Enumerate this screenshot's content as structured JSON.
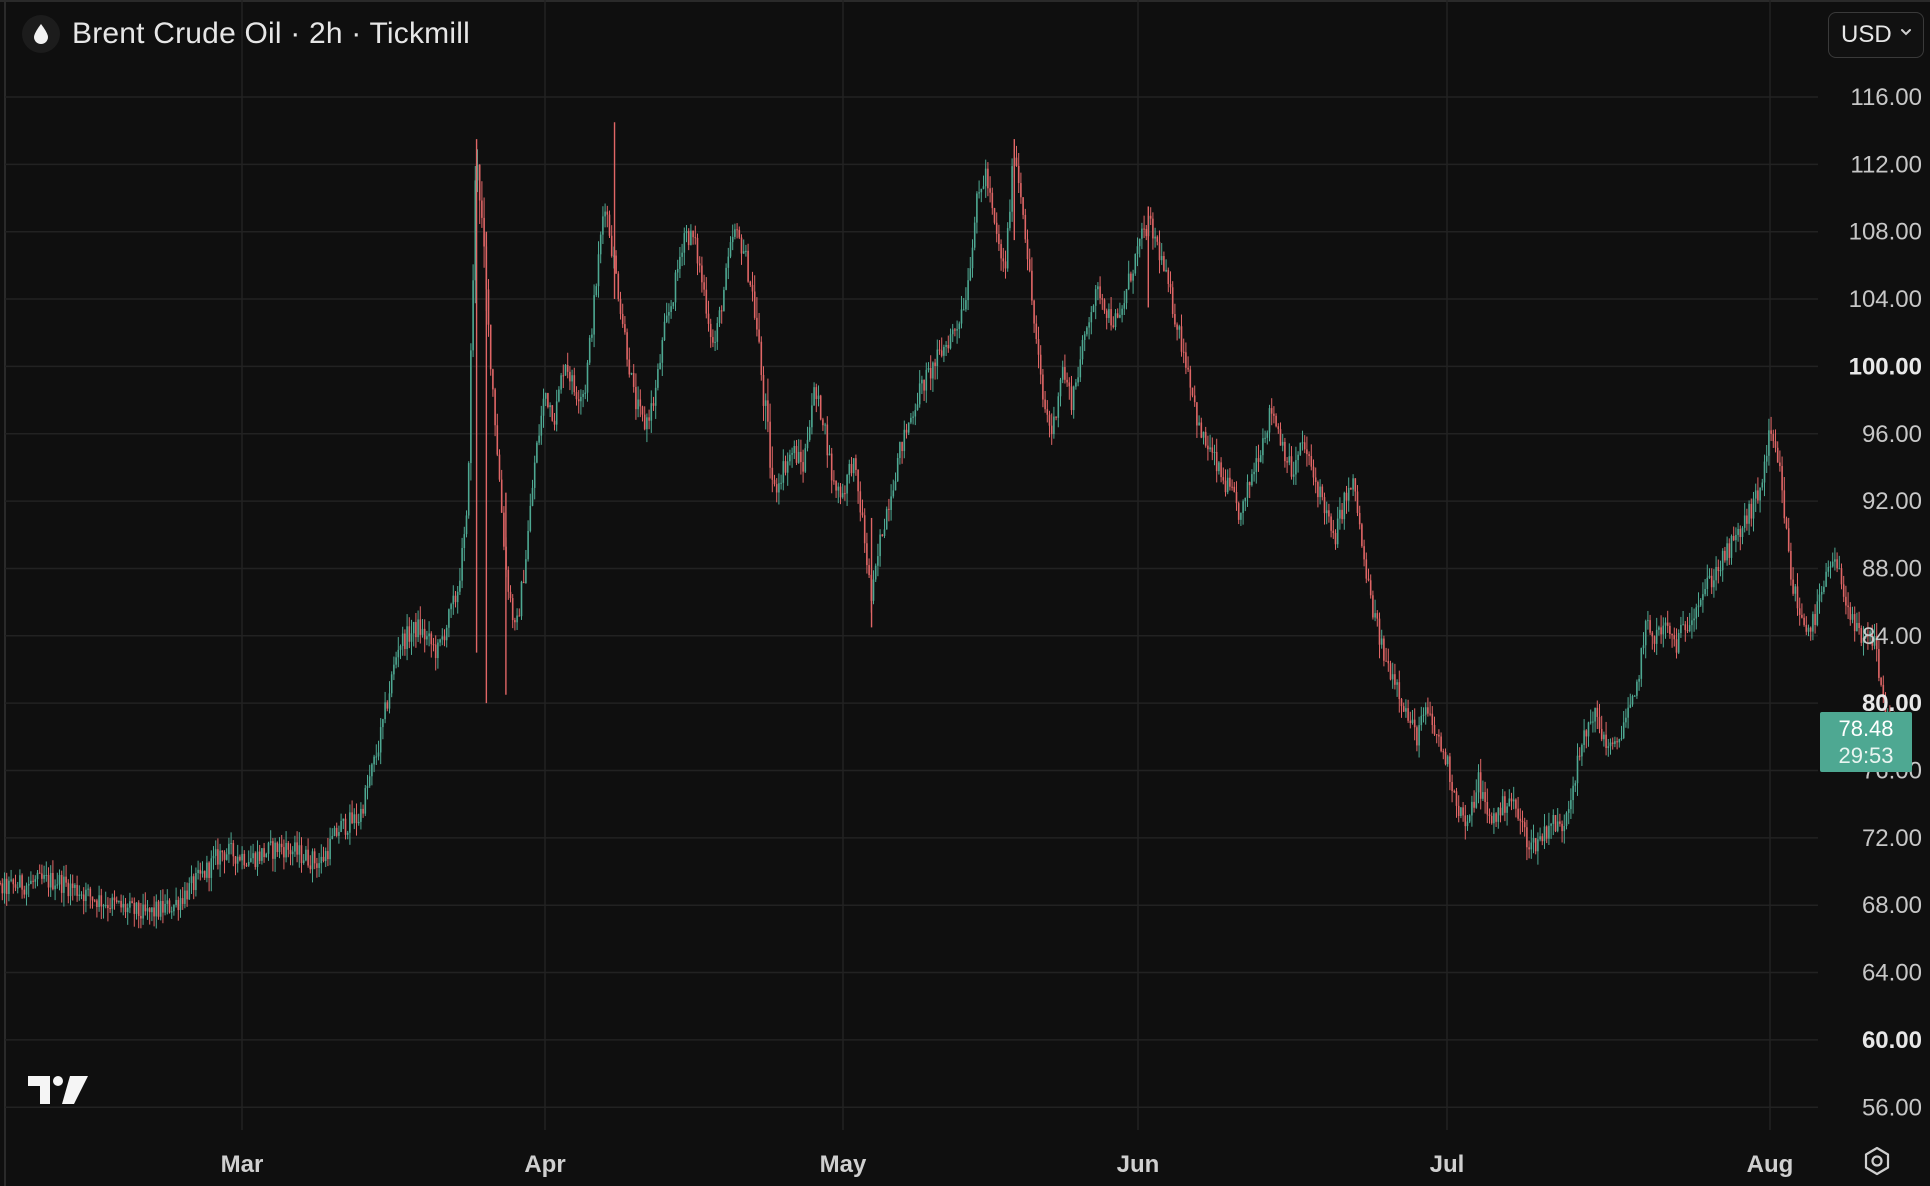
{
  "header": {
    "icon": "drop-icon",
    "title": "Brent Crude Oil · 2h · Tickmill"
  },
  "currency": {
    "label": "USD",
    "icon": "chevron-down-icon"
  },
  "footer": {
    "logo": "tradingview-logo-icon",
    "settings_icon": "gear-icon"
  },
  "colors": {
    "background": "#0f0f0f",
    "up": "#4ea892",
    "down": "#e06666",
    "grid": "#222222",
    "price_tag": "#4ea892"
  },
  "chart_data": {
    "type": "candlestick",
    "title": "Brent Crude Oil · 2h · Tickmill",
    "x_ticks": [
      "Mar",
      "Apr",
      "May",
      "Jun",
      "Jul",
      "Aug"
    ],
    "y_ticks": [
      "116.00",
      "112.00",
      "108.00",
      "104.00",
      "100.00",
      "96.00",
      "92.00",
      "88.00",
      "84.00",
      "80.00",
      "76.00",
      "72.00",
      "68.00",
      "64.00",
      "60.00",
      "56.00"
    ],
    "bold_y_ticks": [
      "100.00",
      "80.00",
      "60.00"
    ],
    "ylim": [
      54,
      120
    ],
    "grid": true,
    "current_price": "78.48",
    "countdown": "29:53",
    "price_path": [
      [
        "02-01",
        68.5
      ],
      [
        "02-05",
        69.2
      ],
      [
        "02-09",
        69.5
      ],
      [
        "02-13",
        68.4
      ],
      [
        "02-18",
        67.4
      ],
      [
        "02-21",
        68.0
      ],
      [
        "02-24",
        69.8
      ],
      [
        "02-26",
        71.2
      ],
      [
        "03-01",
        70.8
      ],
      [
        "03-04",
        71.5
      ],
      [
        "03-08",
        70.5
      ],
      [
        "03-10",
        72.6
      ],
      [
        "03-12",
        73.2
      ],
      [
        "03-14",
        77.5
      ],
      [
        "03-15",
        80.5
      ],
      [
        "03-16",
        83.5
      ],
      [
        "03-18",
        84.5
      ],
      [
        "03-20",
        83.0
      ],
      [
        "03-22",
        86.5
      ],
      [
        "03-23",
        90.8
      ],
      [
        "03-24",
        113.5
      ],
      [
        "03-25",
        104.0
      ],
      [
        "03-26",
        96.0
      ],
      [
        "03-27",
        88.0
      ],
      [
        "03-28",
        84.0
      ],
      [
        "03-29",
        88.5
      ],
      [
        "03-30",
        94.5
      ],
      [
        "03-31",
        98.5
      ],
      [
        "04-01",
        97.0
      ],
      [
        "04-02",
        100.5
      ],
      [
        "04-03",
        98.5
      ],
      [
        "04-04",
        98.5
      ],
      [
        "04-05",
        104.0
      ],
      [
        "04-06",
        110.0
      ],
      [
        "04-07",
        106.0
      ],
      [
        "04-08",
        102.0
      ],
      [
        "04-09",
        98.0
      ],
      [
        "04-10",
        96.5
      ],
      [
        "04-11",
        98.0
      ],
      [
        "04-12",
        102.0
      ],
      [
        "04-13",
        104.5
      ],
      [
        "04-14",
        108.0
      ],
      [
        "04-15",
        107.5
      ],
      [
        "04-16",
        104.5
      ],
      [
        "04-17",
        101.0
      ],
      [
        "04-18",
        104.5
      ],
      [
        "04-19",
        108.0
      ],
      [
        "04-20",
        107.0
      ],
      [
        "04-21",
        104.0
      ],
      [
        "04-23",
        92.5
      ],
      [
        "04-24",
        94.0
      ],
      [
        "04-25",
        95.0
      ],
      [
        "04-26",
        94.0
      ],
      [
        "04-27",
        98.5
      ],
      [
        "04-28",
        97.0
      ],
      [
        "04-29",
        93.0
      ],
      [
        "04-30",
        92.5
      ],
      [
        "05-01",
        94.5
      ],
      [
        "05-02",
        91.0
      ],
      [
        "05-03",
        86.0
      ],
      [
        "05-04",
        90.0
      ],
      [
        "05-05",
        92.5
      ],
      [
        "05-06",
        95.0
      ],
      [
        "05-08",
        98.5
      ],
      [
        "05-10",
        100.5
      ],
      [
        "05-12",
        102.5
      ],
      [
        "05-13",
        104.5
      ],
      [
        "05-14",
        109.5
      ],
      [
        "05-15",
        111.5
      ],
      [
        "05-16",
        108.0
      ],
      [
        "05-17",
        105.5
      ],
      [
        "05-18",
        113.0
      ],
      [
        "05-19",
        109.0
      ],
      [
        "05-20",
        103.0
      ],
      [
        "05-21",
        98.0
      ],
      [
        "05-22",
        96.0
      ],
      [
        "05-23",
        100.0
      ],
      [
        "05-24",
        98.0
      ],
      [
        "05-25",
        100.5
      ],
      [
        "05-26",
        103.5
      ],
      [
        "05-27",
        104.5
      ],
      [
        "05-28",
        103.0
      ],
      [
        "05-29",
        102.5
      ],
      [
        "05-30",
        105.0
      ],
      [
        "05-31",
        107.0
      ],
      [
        "06-01",
        108.5
      ],
      [
        "06-02",
        107.0
      ],
      [
        "06-03",
        104.5
      ],
      [
        "06-04",
        102.0
      ],
      [
        "06-05",
        99.5
      ],
      [
        "06-06",
        96.0
      ],
      [
        "06-07",
        95.0
      ],
      [
        "06-08",
        93.5
      ],
      [
        "06-09",
        92.5
      ],
      [
        "06-10",
        91.0
      ],
      [
        "06-11",
        93.5
      ],
      [
        "06-12",
        95.5
      ],
      [
        "06-13",
        97.5
      ],
      [
        "06-14",
        95.5
      ],
      [
        "06-15",
        93.5
      ],
      [
        "06-16",
        95.5
      ],
      [
        "06-17",
        93.5
      ],
      [
        "06-18",
        92.0
      ],
      [
        "06-19",
        89.5
      ],
      [
        "06-20",
        92.0
      ],
      [
        "06-21",
        93.0
      ],
      [
        "06-22",
        88.0
      ],
      [
        "06-23",
        85.0
      ],
      [
        "06-24",
        82.5
      ],
      [
        "06-25",
        81.5
      ],
      [
        "06-26",
        79.5
      ],
      [
        "06-27",
        78.0
      ],
      [
        "06-28",
        79.5
      ],
      [
        "06-29",
        78.0
      ],
      [
        "06-30",
        76.5
      ],
      [
        "07-01",
        74.0
      ],
      [
        "07-02",
        72.5
      ],
      [
        "07-03",
        75.5
      ],
      [
        "07-04",
        73.0
      ],
      [
        "07-05",
        73.5
      ],
      [
        "07-06",
        74.5
      ],
      [
        "07-07",
        73.0
      ],
      [
        "07-08",
        71.5
      ],
      [
        "07-09",
        72.0
      ],
      [
        "07-10",
        73.0
      ],
      [
        "07-11",
        72.5
      ],
      [
        "07-12",
        75.0
      ],
      [
        "07-13",
        77.5
      ],
      [
        "07-14",
        79.5
      ],
      [
        "07-15",
        78.0
      ],
      [
        "07-16",
        77.0
      ],
      [
        "07-17",
        79.0
      ],
      [
        "07-18",
        80.0
      ],
      [
        "07-19",
        84.5
      ],
      [
        "07-20",
        84.0
      ],
      [
        "07-21",
        84.5
      ],
      [
        "07-22",
        83.5
      ],
      [
        "07-24",
        86.0
      ],
      [
        "07-26",
        88.0
      ],
      [
        "07-28",
        90.0
      ],
      [
        "07-30",
        92.5
      ],
      [
        "07-31",
        96.0
      ],
      [
        "08-01",
        93.5
      ],
      [
        "08-02",
        87.5
      ],
      [
        "08-03",
        85.0
      ],
      [
        "08-04",
        84.5
      ],
      [
        "08-05",
        86.5
      ],
      [
        "08-06",
        88.5
      ],
      [
        "08-07",
        87.0
      ],
      [
        "08-08",
        84.5
      ],
      [
        "08-09",
        83.5
      ],
      [
        "08-10",
        84.0
      ],
      [
        "08-11",
        79.5
      ],
      [
        "08-12",
        78.48
      ]
    ]
  }
}
